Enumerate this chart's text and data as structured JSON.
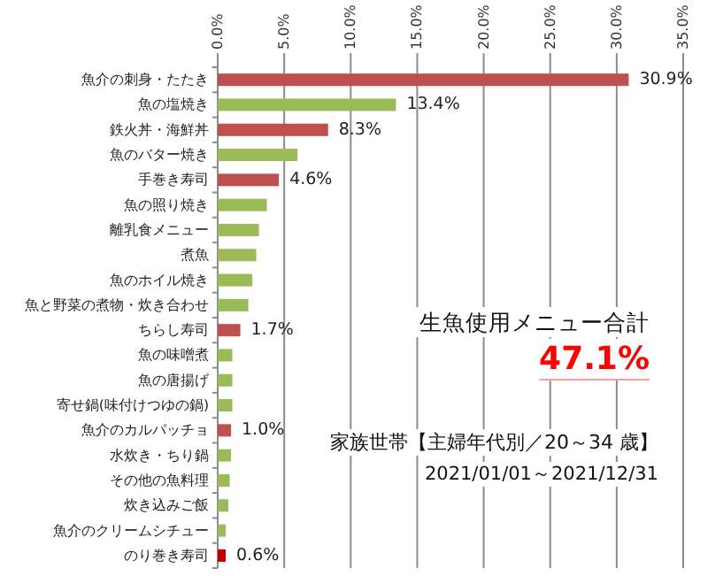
{
  "chart_data": {
    "type": "bar",
    "orientation": "horizontal",
    "categories": [
      "魚介の刺身・たたき",
      "魚の塩焼き",
      "鉄火丼・海鮮丼",
      "魚のバター焼き",
      "手巻き寿司",
      "魚の照り焼き",
      "離乳食メニュー",
      "煮魚",
      "魚のホイル焼き",
      "魚と野菜の煮物・炊き合わせ",
      "ちらし寿司",
      "魚の味噌煮",
      "魚の唐揚げ",
      "寄せ鍋(味付けつゆの鍋)",
      "魚介のカルパッチョ",
      "水炊き・ちり鍋",
      "その他の魚料理",
      "炊き込みご飯",
      "魚介のクリームシチュー",
      "のり巻き寿司"
    ],
    "values": [
      30.9,
      13.4,
      8.3,
      6.0,
      4.6,
      3.7,
      3.1,
      2.9,
      2.6,
      2.3,
      1.7,
      1.1,
      1.1,
      1.1,
      1.0,
      1.0,
      0.9,
      0.8,
      0.6,
      0.6
    ],
    "colors": [
      "#c0504d",
      "#9bbb59",
      "#c0504d",
      "#9bbb59",
      "#c0504d",
      "#9bbb59",
      "#9bbb59",
      "#9bbb59",
      "#9bbb59",
      "#9bbb59",
      "#c0504d",
      "#9bbb59",
      "#9bbb59",
      "#9bbb59",
      "#c0504d",
      "#9bbb59",
      "#9bbb59",
      "#9bbb59",
      "#9bbb59",
      "#c00000"
    ],
    "value_labels": [
      "30.9%",
      "13.4%",
      "8.3%",
      null,
      "4.6%",
      null,
      null,
      null,
      null,
      null,
      "1.7%",
      null,
      null,
      null,
      "1.0%",
      null,
      null,
      null,
      null,
      "0.6%"
    ],
    "xlim": [
      0,
      35
    ],
    "xticks": [
      {
        "value": 0,
        "label": "0.0%"
      },
      {
        "value": 5,
        "label": "5.0%"
      },
      {
        "value": 10,
        "label": "10.0%"
      },
      {
        "value": 15,
        "label": "15.0%"
      },
      {
        "value": 20,
        "label": "20.0%"
      },
      {
        "value": 25,
        "label": "25.0%"
      },
      {
        "value": 30,
        "label": "30.0%"
      },
      {
        "value": 35,
        "label": "35.0%"
      }
    ],
    "grid": "x",
    "annotations": [
      "生魚使用メニュー合計",
      "47.1%",
      "家族世帯【主婦年代別／20～34 歳】",
      "2021/01/01～2021/12/31"
    ]
  }
}
